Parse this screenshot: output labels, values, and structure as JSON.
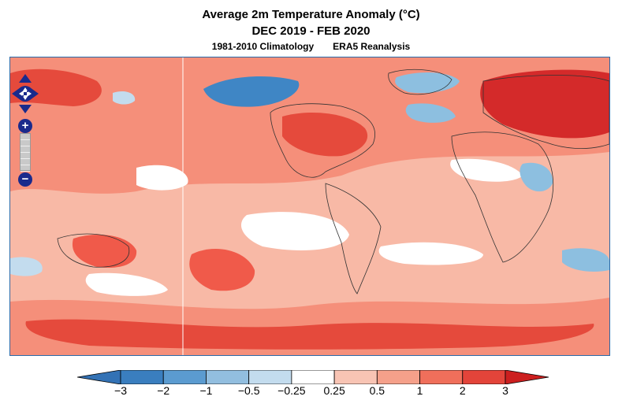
{
  "title": {
    "line1": "Average 2m Temperature Anomaly (°C)",
    "line2": "DEC 2019 - FEB 2020",
    "climatology": "1981-2010 Climatology",
    "dataset": "ERA5 Reanalysis"
  },
  "map": {
    "projection": "global lat-lon",
    "colors": {
      "strong_warm": "#d42a2a",
      "warm": "#f05a4a",
      "mild_warm": "#f58f7a",
      "slight_warm": "#f8b9a6",
      "neutral": "#ffffff",
      "slight_cool": "#c3dcee",
      "cool": "#8dbfe0",
      "strong_cool": "#3f86c5",
      "land_border": "#333333"
    }
  },
  "colorbar": {
    "ticks": [
      "−3",
      "−2",
      "−1",
      "−0.5",
      "−0.25",
      "0.25",
      "0.5",
      "1",
      "2",
      "3"
    ],
    "segment_colors": [
      "#3a7ebf",
      "#5b9bd0",
      "#92bedf",
      "#c3dcee",
      "#ffffff",
      "#f8c4b4",
      "#f5a08a",
      "#f06f5b",
      "#e3443a"
    ],
    "end_low_color": "#3372b5",
    "end_high_color": "#cc1f1f"
  },
  "navigation": {
    "zoom_in": "+",
    "zoom_out": "−"
  }
}
